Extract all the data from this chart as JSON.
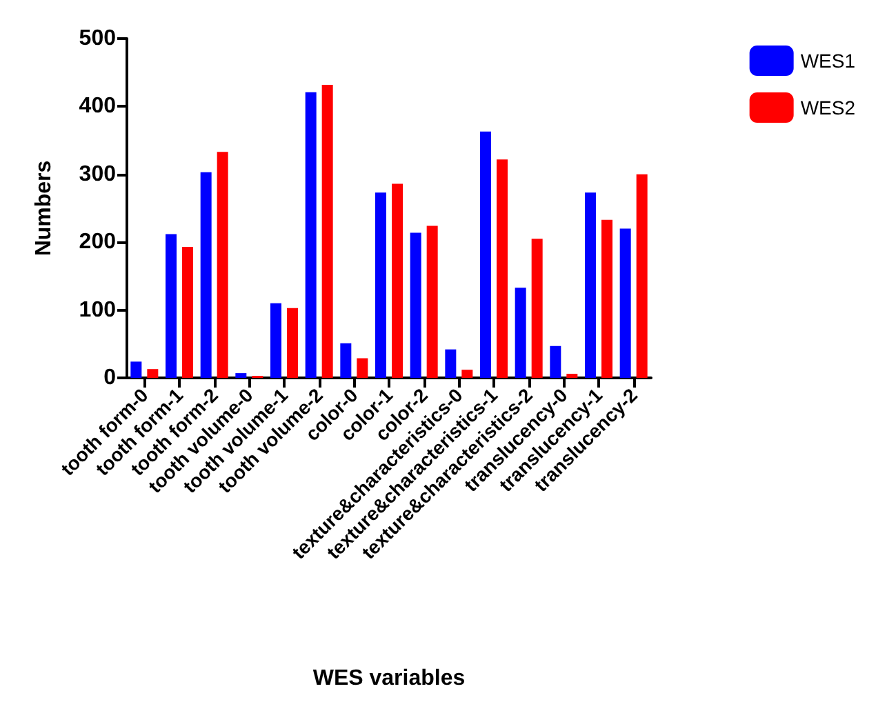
{
  "chart_data": {
    "type": "bar",
    "xlabel": "WES variables",
    "ylabel": "Numbers",
    "categories": [
      "tooth form-0",
      "tooth form-1",
      "tooth form-2",
      "tooth volume-0",
      "tooth volume-1",
      "tooth volume-2",
      "color-0",
      "color-1",
      "color-2",
      "texture&characteristics-0",
      "texture&characteristics-1",
      "texture&characteristics-2",
      "translucency-0",
      "translucency-1",
      "translucency-2"
    ],
    "series": [
      {
        "name": "WES1",
        "color": "#0000ff",
        "values": [
          24,
          212,
          303,
          7,
          110,
          421,
          51,
          273,
          214,
          42,
          363,
          133,
          47,
          273,
          220
        ]
      },
      {
        "name": "WES2",
        "color": "#ff0000",
        "values": [
          13,
          193,
          333,
          3,
          103,
          432,
          29,
          286,
          224,
          12,
          322,
          205,
          6,
          233,
          300
        ]
      }
    ],
    "ylim": [
      0,
      500
    ],
    "yticks": [
      0,
      100,
      200,
      300,
      400,
      500
    ],
    "grid": false,
    "legend": "top right"
  }
}
